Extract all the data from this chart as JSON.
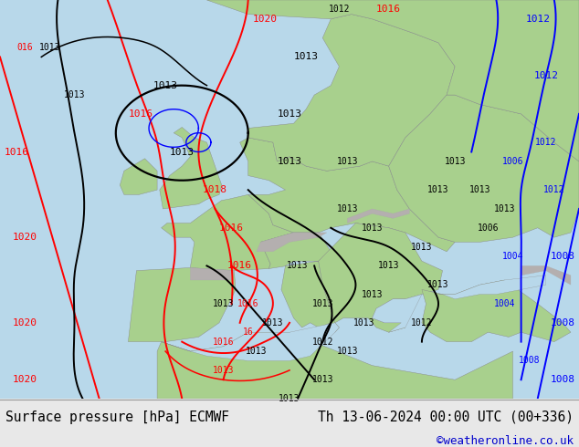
{
  "title_left": "Surface pressure [hPa] ECMWF",
  "title_right": "Th 13-06-2024 00:00 UTC (00+336)",
  "credit": "©weatheronline.co.uk",
  "footer_bg": "#e8e8e8",
  "footer_text_color": "#000000",
  "credit_color": "#0000cc",
  "font_family": "monospace",
  "title_fontsize": 10.5,
  "credit_fontsize": 9,
  "figsize": [
    6.34,
    4.9
  ],
  "dpi": 100,
  "land_color": [
    168,
    208,
    141
  ],
  "sea_color": [
    176,
    216,
    230
  ],
  "mountain_color": [
    180,
    175,
    175
  ],
  "map_extent": [
    -25,
    45,
    30,
    72
  ]
}
